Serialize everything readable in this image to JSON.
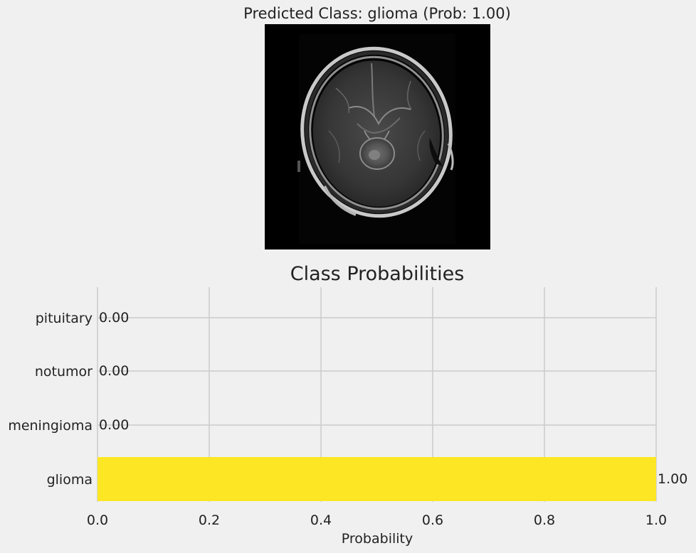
{
  "prediction_title": "Predicted Class: glioma (Prob: 1.00)",
  "image": {
    "icon": "brain-mri-scan-image"
  },
  "chart_data": {
    "type": "bar",
    "orientation": "horizontal",
    "title": "Class Probabilities",
    "xlabel": "Probability",
    "ylabel": "",
    "categories": [
      "glioma",
      "meningioma",
      "notumor",
      "pituitary"
    ],
    "values": [
      1.0,
      0.0,
      0.0,
      0.0
    ],
    "value_labels": [
      "1.00",
      "0.00",
      "0.00",
      "0.00"
    ],
    "xlim": [
      0.0,
      1.0
    ],
    "xticks": [
      0.0,
      0.2,
      0.4,
      0.6,
      0.8,
      1.0
    ],
    "xtick_labels": [
      "0.0",
      "0.2",
      "0.4",
      "0.6",
      "0.8",
      "1.0"
    ],
    "grid": true,
    "colors": {
      "bar": "#fde725",
      "grid": "#cbcbcb",
      "background": "#f0f0f0"
    }
  }
}
